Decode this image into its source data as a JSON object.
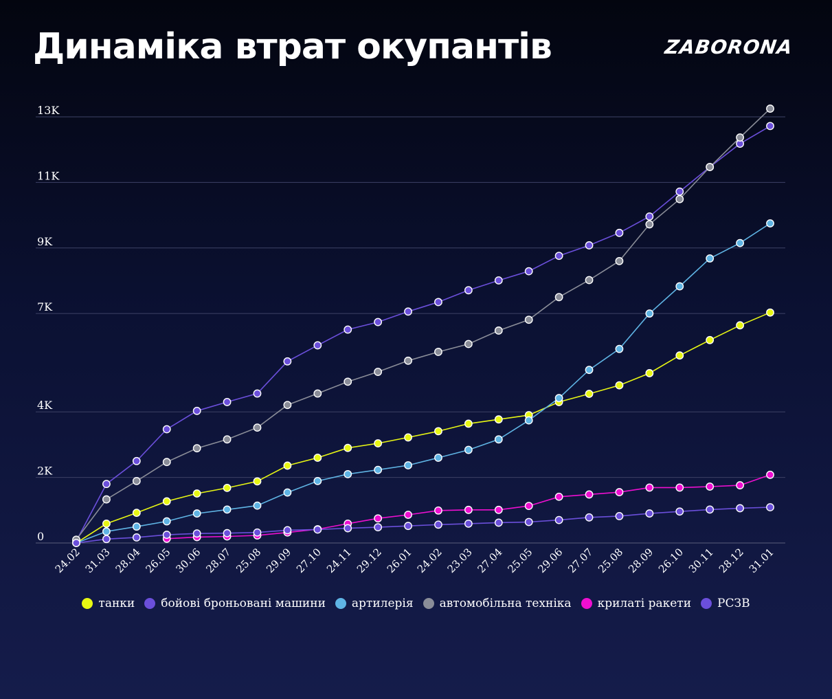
{
  "header": {
    "title": "Динаміка втрат окупантів",
    "logo_text": "ZABORONA"
  },
  "chart_data": {
    "type": "line",
    "title": "Динаміка втрат окупантів",
    "xlabel": "",
    "ylabel": "",
    "ylim": [
      0,
      13000
    ],
    "y_ticks": [
      0,
      2000,
      4000,
      7000,
      9000,
      11000,
      13000
    ],
    "y_tick_labels": [
      "0",
      "2K",
      "4K",
      "7K",
      "9K",
      "11K",
      "13K"
    ],
    "grid": true,
    "legend_position": "bottom",
    "categories": [
      "24.02",
      "31.03",
      "28.04",
      "26.05",
      "30.06",
      "28.07",
      "25.08",
      "29.09",
      "27.10",
      "24.11",
      "29.12",
      "26.01",
      "24.02",
      "23.03",
      "27.04",
      "25.05",
      "29.06",
      "27.07",
      "25.08",
      "28.09",
      "26.10",
      "30.11",
      "28.12",
      "31.01"
    ],
    "series": [
      {
        "name": "танки",
        "color": "#e8f713",
        "values": [
          0,
          590,
          920,
          1270,
          1510,
          1680,
          1880,
          2360,
          2600,
          2900,
          3040,
          3220,
          3410,
          3640,
          3770,
          3900,
          4300,
          4550,
          4810,
          5180,
          5720,
          6190,
          6640,
          7030
        ]
      },
      {
        "name": "бойові броньовані машини",
        "color": "#6b4fdb",
        "values": [
          60,
          1800,
          2500,
          3470,
          4030,
          4300,
          4560,
          5540,
          6030,
          6510,
          6740,
          7060,
          7350,
          7710,
          8010,
          8290,
          8760,
          9080,
          9460,
          9960,
          10720,
          11470,
          12180,
          12720
        ]
      },
      {
        "name": "артилерія",
        "color": "#5fb4e4",
        "values": [
          0,
          350,
          500,
          660,
          900,
          1020,
          1140,
          1540,
          1890,
          2100,
          2230,
          2370,
          2600,
          2840,
          3160,
          3740,
          4420,
          5280,
          5920,
          7000,
          7830,
          8680,
          9150,
          9750
        ]
      },
      {
        "name": "автомобільна техніка",
        "color": "#8a8d98",
        "values": [
          100,
          1330,
          1890,
          2470,
          2890,
          3160,
          3520,
          4210,
          4560,
          4920,
          5220,
          5560,
          5830,
          6070,
          6480,
          6810,
          7500,
          8020,
          8600,
          9720,
          10490,
          11470,
          12370,
          13250
        ]
      },
      {
        "name": "крилаті ракети",
        "color": "#ef0fd1",
        "values": [
          null,
          null,
          null,
          130,
          180,
          200,
          230,
          320,
          420,
          590,
          750,
          860,
          990,
          1010,
          1010,
          1130,
          1410,
          1480,
          1550,
          1690,
          1690,
          1720,
          1760,
          2080
        ]
      },
      {
        "name": "РСЗВ",
        "color": "#6b4fdb",
        "values": [
          0,
          120,
          170,
          250,
          290,
          300,
          320,
          390,
          410,
          450,
          480,
          520,
          560,
          590,
          620,
          640,
          700,
          780,
          820,
          900,
          960,
          1020,
          1060,
          1090
        ]
      }
    ]
  }
}
